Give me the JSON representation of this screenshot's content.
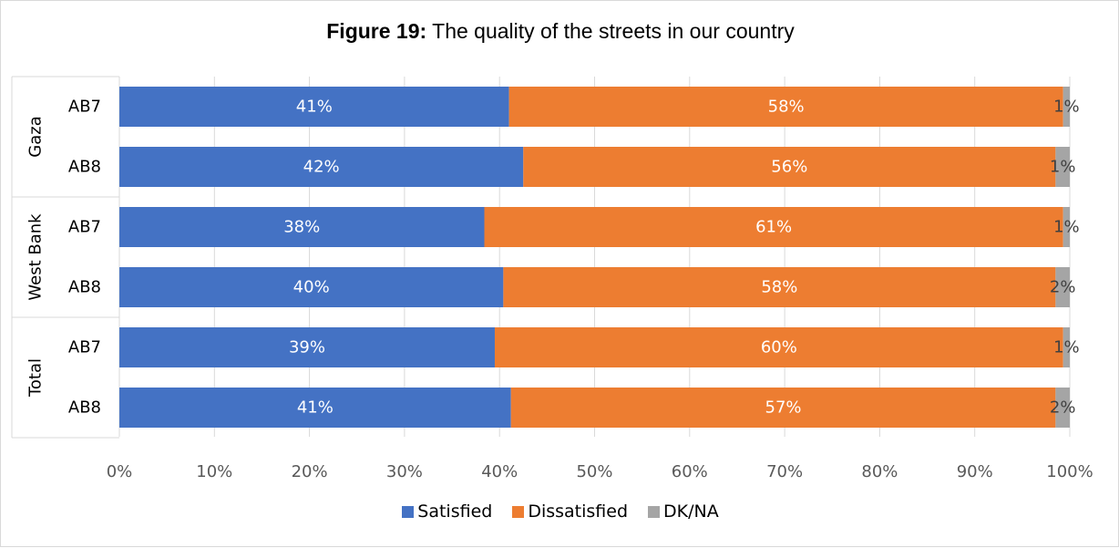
{
  "chart_data": {
    "type": "bar",
    "orientation": "horizontal",
    "stacked": true,
    "title": {
      "bold": "Figure 19:",
      "rest": " The quality of the streets in our country"
    },
    "groups": [
      {
        "name": "Gaza",
        "rows": [
          "AB7",
          "AB8"
        ]
      },
      {
        "name": "West Bank",
        "rows": [
          "AB7",
          "AB8"
        ]
      },
      {
        "name": "Total",
        "rows": [
          "AB7",
          "AB8"
        ]
      }
    ],
    "series": [
      {
        "name": "Satisfied",
        "color": "#4472c4",
        "label_color": "#ffffff",
        "values": [
          41,
          42.5,
          38.4,
          40.4,
          39.5,
          41.2
        ],
        "labels": [
          "41%",
          "42%",
          "38%",
          "40%",
          "39%",
          "41%"
        ]
      },
      {
        "name": "Dissatisfied",
        "color": "#ed7d31",
        "label_color": "#ffffff",
        "values": [
          58.3,
          56,
          60.9,
          58.1,
          59.8,
          57.3
        ],
        "labels": [
          "58%",
          "56%",
          "61%",
          "58%",
          "60%",
          "57%"
        ]
      },
      {
        "name": "DK/NA",
        "color": "#a5a5a5",
        "label_color": "#404040",
        "values": [
          0.7,
          1.5,
          0.7,
          1.5,
          0.7,
          1.5
        ],
        "labels": [
          "1%",
          "1%",
          "1%",
          "2%",
          "1%",
          "2%"
        ]
      }
    ],
    "xlim": [
      0,
      100
    ],
    "xticks": [
      "0%",
      "10%",
      "20%",
      "30%",
      "40%",
      "50%",
      "60%",
      "70%",
      "80%",
      "90%",
      "100%"
    ],
    "grid": true,
    "legend_position": "bottom"
  }
}
